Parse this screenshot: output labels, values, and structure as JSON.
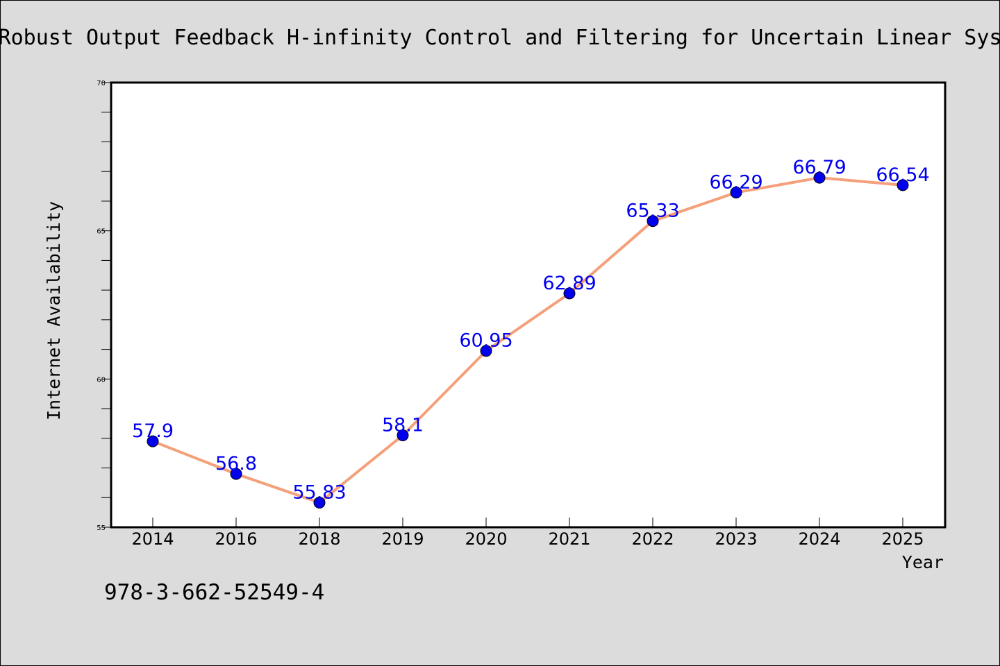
{
  "chart_data": {
    "type": "line",
    "title": "Robust Output Feedback H-infinity Control and Filtering for Uncertain Linear Sys",
    "xlabel": "Year",
    "ylabel": "Internet Availability",
    "categories": [
      "2014",
      "2016",
      "2018",
      "2019",
      "2020",
      "2021",
      "2022",
      "2023",
      "2024",
      "2025"
    ],
    "values": [
      57.9,
      56.8,
      55.83,
      58.1,
      60.95,
      62.89,
      65.33,
      66.29,
      66.79,
      66.54
    ],
    "data_labels": [
      "57.9",
      "56.8",
      "55.83",
      "58.1",
      "60.95",
      "62.89",
      "65.33",
      "66.29",
      "66.79",
      "66.54"
    ],
    "ylim": [
      55,
      70
    ],
    "yticks": [
      "55",
      "60",
      "65",
      "70"
    ],
    "grid": false,
    "line_color": "#f4a07a",
    "marker_color": "#0000ee",
    "label_color": "#0000ee"
  },
  "footer": {
    "isbn": "978-3-662-52549-4"
  }
}
